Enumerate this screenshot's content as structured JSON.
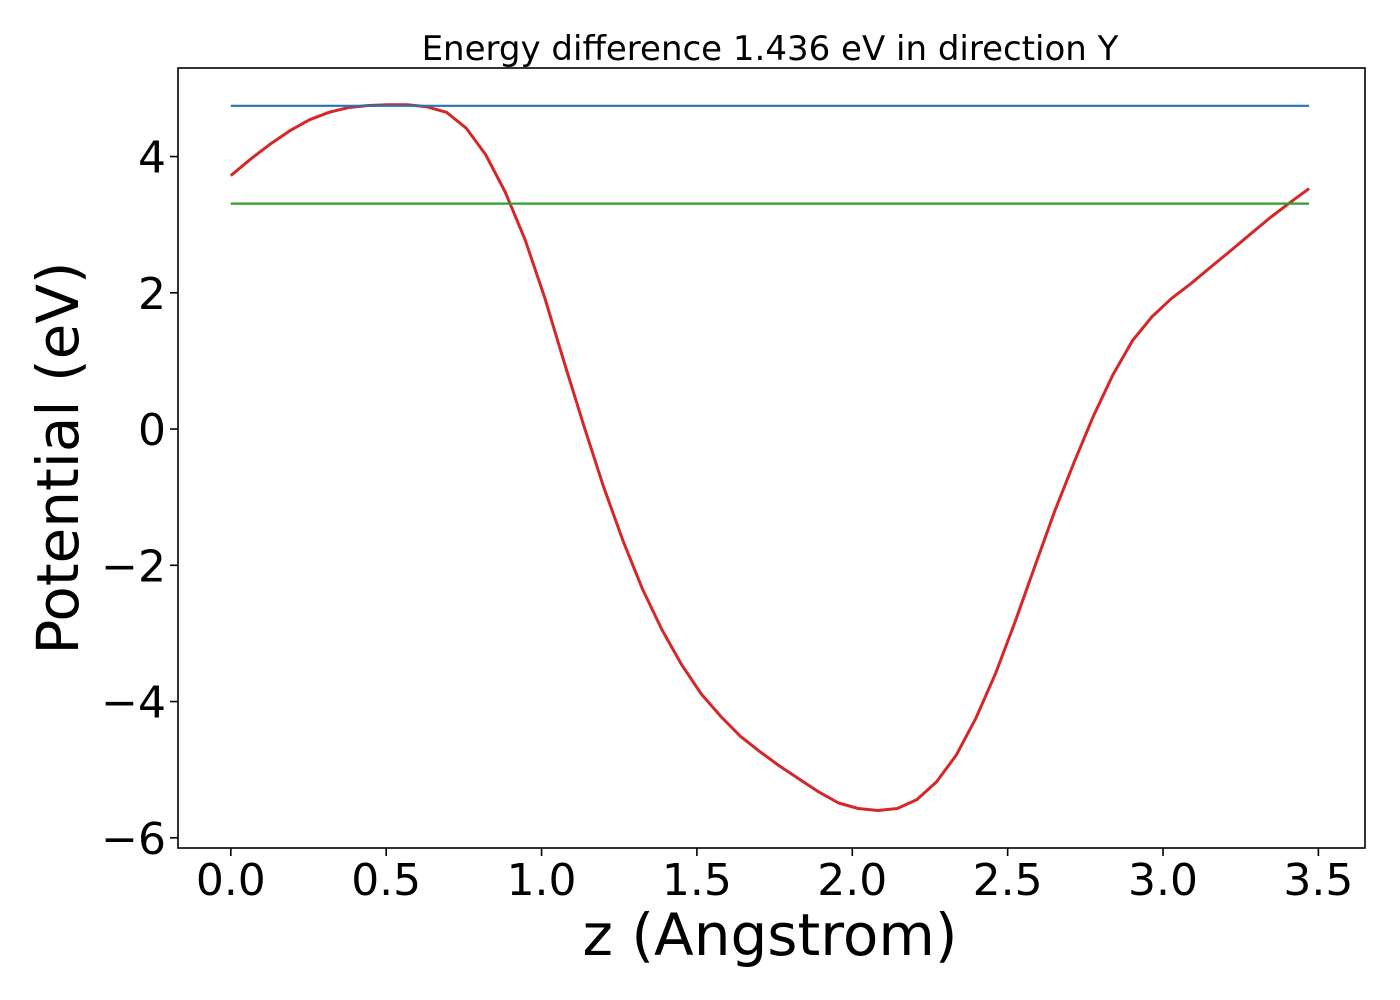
{
  "chart_data": {
    "type": "line",
    "title": "Energy difference 1.436 eV in direction Y",
    "xlabel": "z (Angstrom)",
    "ylabel": "Potential (eV)",
    "xlim": [
      -0.17,
      3.65
    ],
    "ylim": [
      -6.15,
      5.3
    ],
    "x_ticks": [
      0.0,
      0.5,
      1.0,
      1.5,
      2.0,
      2.5,
      3.0,
      3.5
    ],
    "x_tick_labels": [
      "0.0",
      "0.5",
      "1.0",
      "1.5",
      "2.0",
      "2.5",
      "3.0",
      "3.5"
    ],
    "y_ticks": [
      -6,
      -4,
      -2,
      0,
      2,
      4
    ],
    "y_tick_labels": [
      "−6",
      "−4",
      "−2",
      "0",
      "2",
      "4"
    ],
    "grid": false,
    "series": [
      {
        "color": "#d62728",
        "x": [
          0.0,
          0.063,
          0.126,
          0.19,
          0.253,
          0.316,
          0.379,
          0.442,
          0.505,
          0.568,
          0.631,
          0.694,
          0.757,
          0.82,
          0.883,
          0.947,
          1.01,
          1.073,
          1.136,
          1.199,
          1.262,
          1.325,
          1.388,
          1.451,
          1.514,
          1.577,
          1.64,
          1.704,
          1.767,
          1.83,
          1.893,
          1.956,
          2.019,
          2.082,
          2.145,
          2.208,
          2.271,
          2.334,
          2.397,
          2.461,
          2.524,
          2.587,
          2.65,
          2.713,
          2.776,
          2.839,
          2.902,
          2.965,
          3.028,
          3.091,
          3.154,
          3.218,
          3.281,
          3.344,
          3.407,
          3.47
        ],
        "y": [
          3.72,
          3.96,
          4.18,
          4.38,
          4.54,
          4.65,
          4.72,
          4.75,
          4.76,
          4.76,
          4.73,
          4.65,
          4.42,
          4.03,
          3.48,
          2.78,
          1.93,
          0.98,
          0.05,
          -0.84,
          -1.64,
          -2.35,
          -2.95,
          -3.46,
          -3.89,
          -4.22,
          -4.51,
          -4.74,
          -4.95,
          -5.14,
          -5.33,
          -5.49,
          -5.57,
          -5.6,
          -5.57,
          -5.44,
          -5.18,
          -4.79,
          -4.25,
          -3.59,
          -2.83,
          -2.02,
          -1.22,
          -0.5,
          0.19,
          0.8,
          1.3,
          1.65,
          1.92,
          2.14,
          2.38,
          2.62,
          2.86,
          3.1,
          3.32,
          3.53
        ]
      },
      {
        "color": "#1f77b4",
        "x": [
          0.0,
          3.47
        ],
        "y": [
          4.745,
          4.745
        ]
      },
      {
        "color": "#2ca02c",
        "x": [
          0.0,
          3.47
        ],
        "y": [
          3.31,
          3.31
        ]
      }
    ]
  }
}
